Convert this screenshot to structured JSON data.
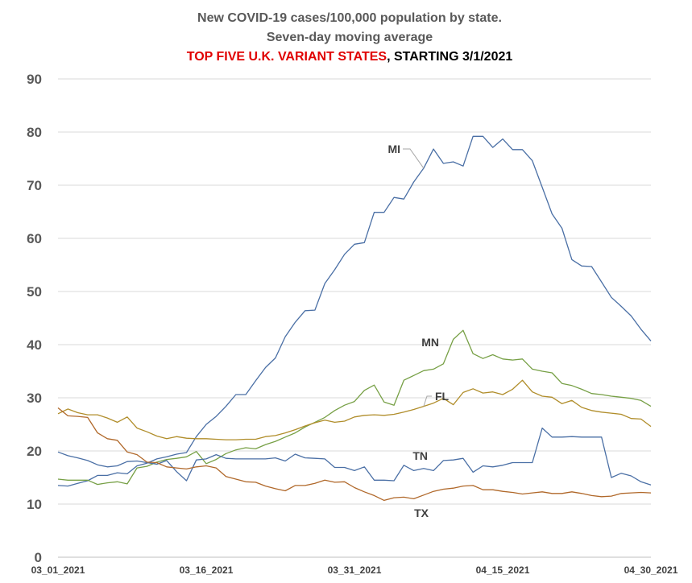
{
  "chart_data": {
    "type": "line",
    "title_lines": [
      "New COVID-19 cases/100,000 population by state.",
      "Seven-day moving average"
    ],
    "subtitle_red": "TOP FIVE U.K. VARIANT STATES",
    "subtitle_black": ", STARTING 3/1/2021",
    "ylim": [
      0,
      90
    ],
    "y_ticks": [
      "0",
      "10",
      "20",
      "30",
      "40",
      "50",
      "60",
      "70",
      "80",
      "90"
    ],
    "x_tick_labels": [
      "03_01_2021",
      "03_16_2021",
      "03_31_2021",
      "04_15_2021",
      "04_30_2021"
    ],
    "x": [
      "03_01_2021",
      "03_02_2021",
      "03_03_2021",
      "03_04_2021",
      "03_05_2021",
      "03_06_2021",
      "03_07_2021",
      "03_08_2021",
      "03_09_2021",
      "03_10_2021",
      "03_11_2021",
      "03_12_2021",
      "03_13_2021",
      "03_14_2021",
      "03_15_2021",
      "03_16_2021",
      "03_17_2021",
      "03_18_2021",
      "03_19_2021",
      "03_20_2021",
      "03_21_2021",
      "03_22_2021",
      "03_23_2021",
      "03_24_2021",
      "03_25_2021",
      "03_26_2021",
      "03_27_2021",
      "03_28_2021",
      "03_29_2021",
      "03_30_2021",
      "03_31_2021",
      "04_01_2021",
      "04_02_2021",
      "04_03_2021",
      "04_04_2021",
      "04_05_2021",
      "04_06_2021",
      "04_07_2021",
      "04_08_2021",
      "04_09_2021",
      "04_10_2021",
      "04_11_2021",
      "04_12_2021",
      "04_13_2021",
      "04_14_2021",
      "04_15_2021",
      "04_16_2021",
      "04_17_2021",
      "04_18_2021",
      "04_19_2021",
      "04_20_2021",
      "04_21_2021",
      "04_22_2021",
      "04_23_2021",
      "04_24_2021",
      "04_25_2021",
      "04_26_2021",
      "04_27_2021",
      "04_28_2021",
      "04_29_2021",
      "04_30_2021"
    ],
    "grid": true,
    "legend": "none",
    "series": [
      {
        "name": "MI",
        "color": "#4a6fa5",
        "values": [
          13.5,
          13.4,
          13.9,
          14.4,
          15.4,
          15.4,
          15.9,
          15.7,
          17.2,
          17.7,
          18.5,
          18.9,
          19.4,
          19.7,
          22.7,
          25.0,
          26.5,
          28.4,
          30.6,
          30.6,
          33.2,
          35.7,
          37.5,
          41.5,
          44.2,
          46.4,
          46.5,
          51.5,
          54.1,
          57.0,
          58.9,
          59.2,
          64.9,
          64.9,
          67.7,
          67.4,
          70.6,
          73.2,
          76.8,
          74.1,
          74.4,
          73.6,
          79.2,
          79.2,
          77.1,
          78.7,
          76.7,
          76.7,
          74.6,
          69.6,
          64.6,
          61.9,
          56.0,
          54.8,
          54.7,
          51.8,
          48.9,
          47.2,
          45.4,
          42.9,
          40.7
        ]
      },
      {
        "name": "MN",
        "color": "#77a046",
        "values": [
          14.7,
          14.5,
          14.5,
          14.5,
          13.7,
          14.0,
          14.2,
          13.8,
          16.8,
          17.1,
          17.9,
          18.4,
          18.6,
          18.9,
          19.9,
          17.6,
          18.4,
          19.5,
          20.2,
          20.6,
          20.4,
          21.2,
          21.8,
          22.6,
          23.4,
          24.5,
          25.4,
          26.3,
          27.6,
          28.6,
          29.3,
          31.4,
          32.4,
          29.2,
          28.6,
          33.3,
          34.2,
          35.1,
          35.4,
          36.4,
          41.0,
          42.7,
          38.3,
          37.4,
          38.1,
          37.3,
          37.1,
          37.3,
          35.4,
          35.0,
          34.7,
          32.7,
          32.3,
          31.6,
          30.8,
          30.6,
          30.3,
          30.1,
          29.9,
          29.5,
          28.4
        ]
      },
      {
        "name": "FL",
        "color": "#b08d2a",
        "values": [
          27.0,
          27.9,
          27.2,
          26.8,
          26.8,
          26.2,
          25.4,
          26.4,
          24.3,
          23.6,
          22.8,
          22.3,
          22.7,
          22.4,
          22.3,
          22.3,
          22.2,
          22.1,
          22.1,
          22.2,
          22.2,
          22.7,
          22.9,
          23.4,
          24.0,
          24.7,
          25.3,
          25.8,
          25.4,
          25.6,
          26.4,
          26.7,
          26.8,
          26.7,
          26.9,
          27.3,
          27.8,
          28.4,
          29.0,
          29.9,
          28.7,
          31.0,
          31.7,
          30.9,
          31.1,
          30.6,
          31.6,
          33.3,
          31.1,
          30.3,
          30.1,
          28.9,
          29.5,
          28.2,
          27.6,
          27.3,
          27.1,
          26.9,
          26.1,
          26.0,
          24.6
        ]
      },
      {
        "name": "TN",
        "color": "#4a6fa5",
        "values": [
          19.8,
          19.1,
          18.7,
          18.2,
          17.4,
          17.0,
          17.2,
          18.0,
          18.1,
          17.8,
          17.5,
          18.2,
          16.1,
          14.4,
          18.3,
          18.5,
          19.3,
          18.6,
          18.5,
          18.5,
          18.5,
          18.5,
          18.7,
          18.1,
          19.4,
          18.7,
          18.6,
          18.5,
          16.9,
          16.9,
          16.3,
          17.0,
          14.5,
          14.5,
          14.4,
          17.3,
          16.3,
          16.7,
          16.3,
          18.2,
          18.3,
          18.6,
          16.0,
          17.2,
          17.0,
          17.3,
          17.8,
          17.8,
          17.8,
          24.3,
          22.6,
          22.6,
          22.7,
          22.6,
          22.6,
          22.6,
          15.0,
          15.8,
          15.3,
          14.2,
          13.6
        ]
      },
      {
        "name": "TX",
        "color": "#b0682a",
        "values": [
          28.1,
          26.6,
          26.5,
          26.3,
          23.4,
          22.3,
          22.0,
          19.8,
          19.3,
          17.9,
          17.8,
          17.0,
          16.8,
          16.6,
          17.0,
          17.2,
          16.8,
          15.2,
          14.7,
          14.2,
          14.1,
          13.4,
          12.9,
          12.5,
          13.5,
          13.5,
          13.9,
          14.5,
          14.1,
          14.2,
          13.1,
          12.3,
          11.6,
          10.7,
          11.2,
          11.3,
          11.0,
          11.7,
          12.4,
          12.8,
          13.0,
          13.4,
          13.5,
          12.7,
          12.7,
          12.4,
          12.2,
          11.9,
          12.1,
          12.3,
          12.0,
          12.0,
          12.3,
          12.0,
          11.6,
          11.4,
          11.5,
          12.0,
          12.1,
          12.2,
          12.1
        ]
      }
    ],
    "series_labels": [
      "MI",
      "MN",
      "FL",
      "TN",
      "TX"
    ]
  }
}
